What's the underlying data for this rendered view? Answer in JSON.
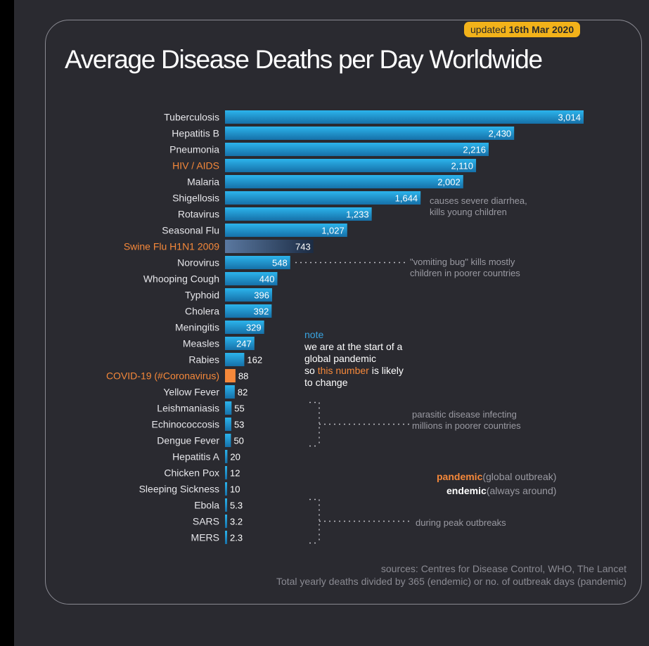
{
  "header": {
    "updated_prefix": "updated",
    "updated_date": "16th Mar 2020",
    "title": "Average Disease Deaths per Day Worldwide"
  },
  "colors": {
    "background": "#2a2a30",
    "bar": "#1e9ad6",
    "bar_dark": "#1670a8",
    "highlight": "#f5883a",
    "badge": "#f2b21a",
    "text": "#ffffff",
    "muted": "#9a9aa2"
  },
  "chart_data": {
    "type": "bar",
    "orientation": "horizontal",
    "title": "Average Disease Deaths per Day Worldwide",
    "categories": [
      "Tuberculosis",
      "Hepatitis B",
      "Pneumonia",
      "HIV / AIDS",
      "Malaria",
      "Shigellosis",
      "Rotavirus",
      "Seasonal Flu",
      "Swine Flu H1N1 2009",
      "Norovirus",
      "Whooping Cough",
      "Typhoid",
      "Cholera",
      "Meningitis",
      "Measles",
      "Rabies",
      "COVID-19 (#Coronavirus)",
      "Yellow Fever",
      "Leishmaniasis",
      "Echinococcosis",
      "Dengue Fever",
      "Hepatitis A",
      "Chicken Pox",
      "Sleeping Sickness",
      "Ebola",
      "SARS",
      "MERS"
    ],
    "values": [
      3014,
      2430,
      2216,
      2110,
      2002,
      1644,
      1233,
      1027,
      743,
      548,
      440,
      396,
      392,
      329,
      247,
      162,
      88,
      82,
      55,
      53,
      50,
      20,
      12,
      10,
      5.3,
      3.2,
      2.3
    ],
    "value_labels": [
      "3,014",
      "2,430",
      "2,216",
      "2,110",
      "2,002",
      "1,644",
      "1,233",
      "1,027",
      "743",
      "548",
      "440",
      "396",
      "392",
      "329",
      "247",
      "162",
      "88",
      "82",
      "55",
      "53",
      "50",
      "20",
      "12",
      "10",
      "5.3",
      "3.2",
      "2.3"
    ],
    "highlighted": [
      "HIV / AIDS",
      "Swine Flu H1N1 2009",
      "COVID-19 (#Coronavirus)"
    ],
    "pandemic_bars": [
      "Swine Flu H1N1 2009",
      "COVID-19 (#Coronavirus)"
    ],
    "xlim": [
      0,
      3014
    ],
    "grid": false
  },
  "annotations": {
    "shigellosis_note": [
      "causes severe diarrhea,",
      "kills young children"
    ],
    "norovirus_note": [
      "\"vomiting bug\" kills mostly",
      "children in poorer countries"
    ],
    "parasitic_note": [
      "parasitic disease infecting",
      "millions in poorer countries"
    ],
    "outbreak_note": "during peak outbreaks",
    "pandemic_note": {
      "head": "note",
      "line1": "we are at the start of a",
      "line2": "global pandemic",
      "line3_pre": "so",
      "line3_hl": "this number",
      "line3_post": "is likely",
      "line4": "to change"
    },
    "legend": {
      "pandemic_term": "pandemic",
      "pandemic_def": "(global outbreak)",
      "endemic_term": "endemic",
      "endemic_def": "(always around)"
    }
  },
  "footer": {
    "sources": "sources: Centres for Disease Control, WHO, The Lancet",
    "method": "Total yearly deaths divided by 365 (endemic) or no. of outbreak days (pandemic)"
  }
}
